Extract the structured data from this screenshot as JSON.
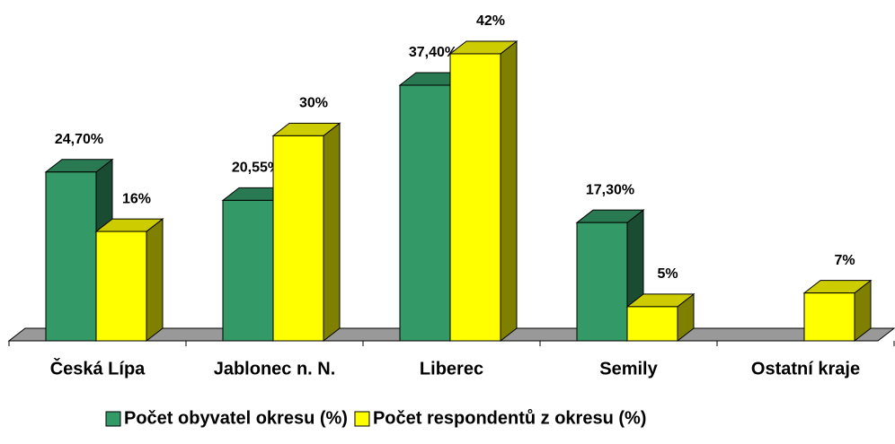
{
  "chart_data": {
    "type": "bar3d",
    "categories": [
      "Česká Lípa",
      "Jablonec n. N.",
      "Liberec",
      "Semily",
      "Ostatní kraje"
    ],
    "series": [
      {
        "name": "Počet obyvatel okresu (%)",
        "color": "#339966",
        "values": [
          24.7,
          20.55,
          37.4,
          17.3,
          null
        ],
        "value_labels": [
          "24,70%",
          "20,55%",
          "37,40%",
          "17,30%",
          null
        ]
      },
      {
        "name": "Počet respondentů z okresu (%)",
        "color": "#ffff00",
        "values": [
          16,
          30,
          42,
          5,
          7
        ],
        "value_labels": [
          "16%",
          "30%",
          "42%",
          "5%",
          "7%"
        ]
      }
    ],
    "legend": "bottom"
  }
}
